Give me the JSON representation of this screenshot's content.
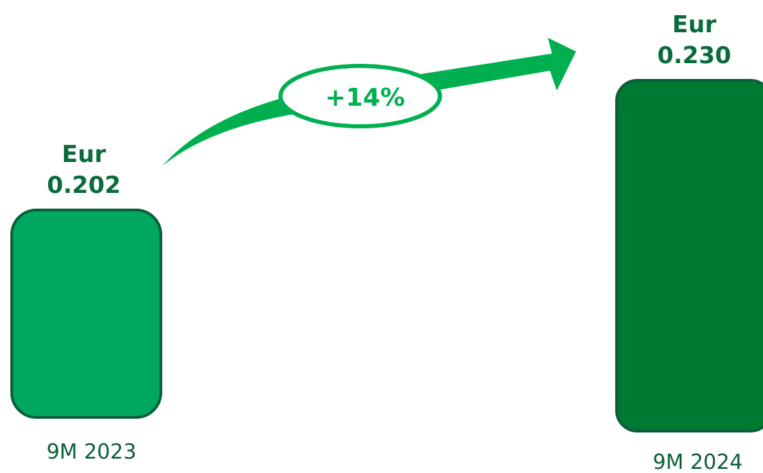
{
  "chart_data": {
    "type": "bar",
    "categories": [
      "9M 2023",
      "9M 2024"
    ],
    "values": [
      0.202,
      0.23
    ],
    "value_labels": [
      {
        "unit": "Eur",
        "amount": "0.202"
      },
      {
        "unit": "Eur",
        "amount": "0.230"
      }
    ],
    "growth_label": "+14%",
    "colors": {
      "bar_2023": "#00a85f",
      "bar_2024": "#007a33",
      "bar_outline": "#0b5e3a",
      "label_text": "#0b6b3d",
      "arrow": "#00b050"
    }
  }
}
